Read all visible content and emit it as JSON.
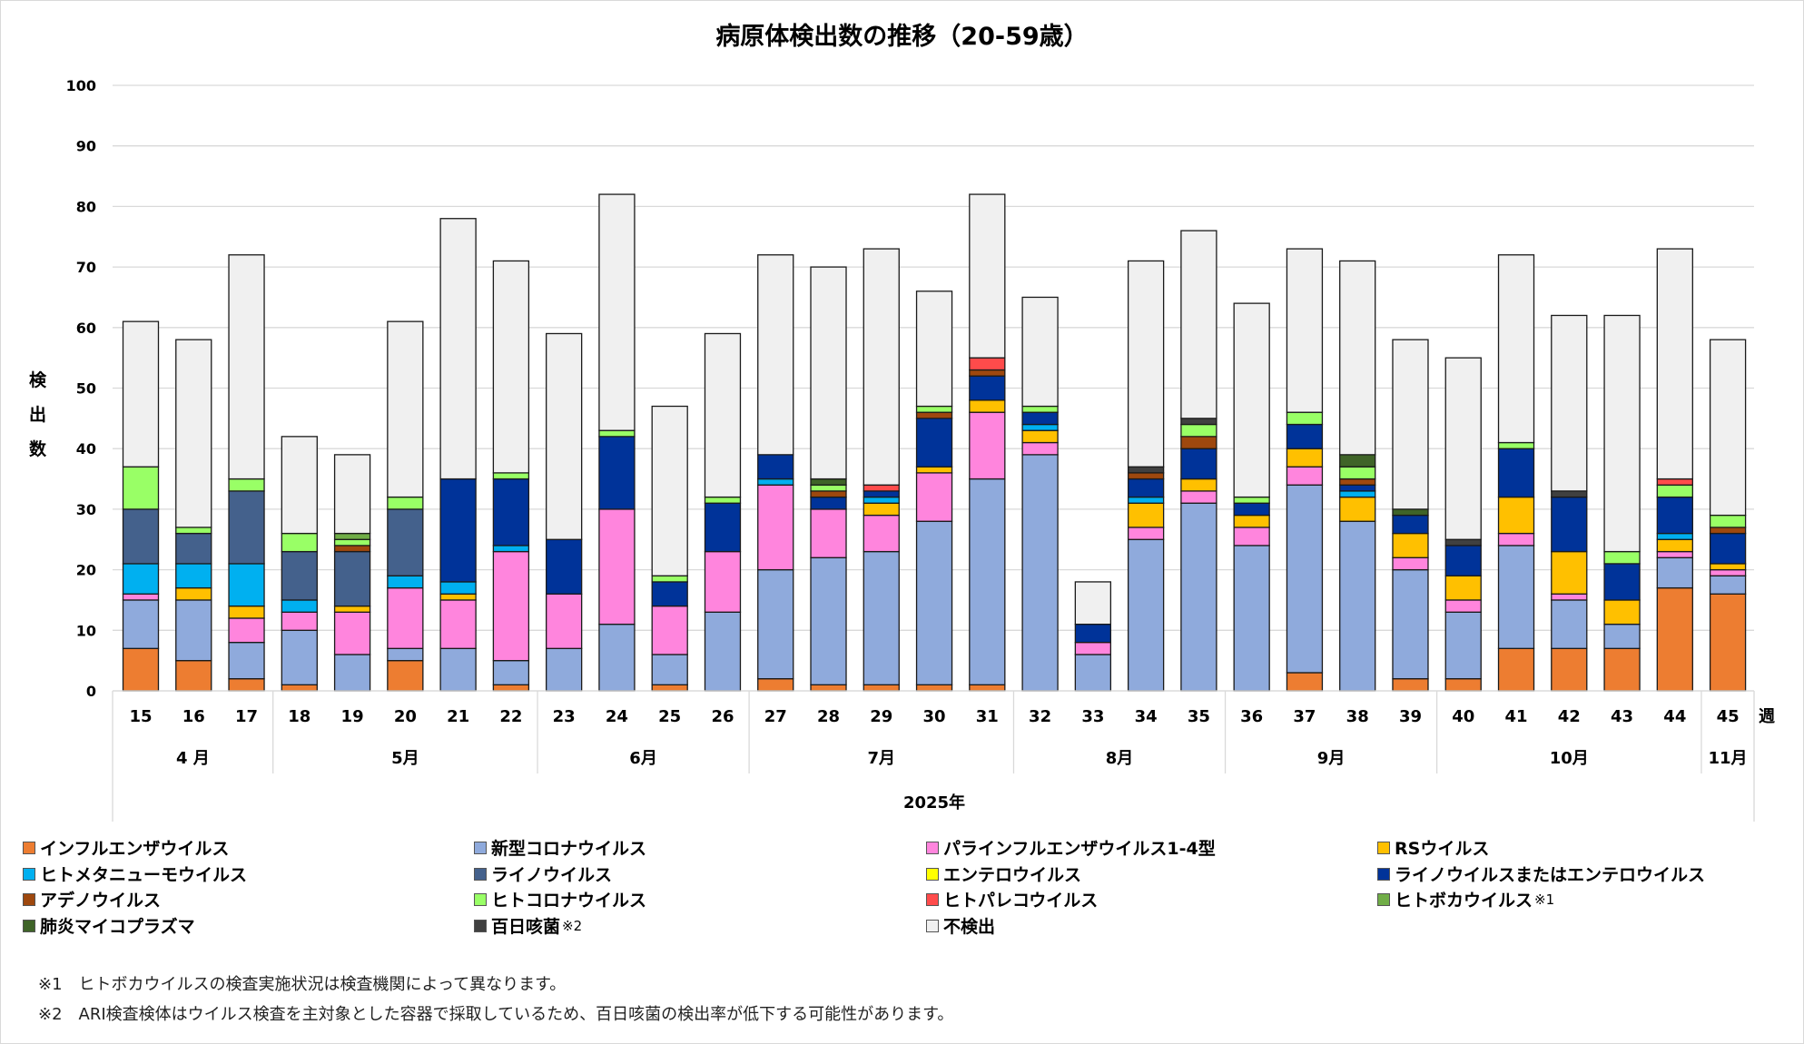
{
  "chart_data": {
    "type": "bar",
    "stacked": true,
    "title": "病原体検出数の推移（20-59歳）",
    "ylabel": "検出数",
    "xlabel": "2025年",
    "x_unit_label": "週",
    "ylim": [
      0,
      100
    ],
    "yticks": [
      0,
      10,
      20,
      30,
      40,
      50,
      60,
      70,
      80,
      90,
      100
    ],
    "grid": true,
    "legend_position": "bottom",
    "categories": [
      "15",
      "16",
      "17",
      "18",
      "19",
      "20",
      "21",
      "22",
      "23",
      "24",
      "25",
      "26",
      "27",
      "28",
      "29",
      "30",
      "31",
      "32",
      "33",
      "34",
      "35",
      "36",
      "37",
      "38",
      "39",
      "40",
      "41",
      "42",
      "43",
      "44",
      "45"
    ],
    "month_groups": [
      {
        "label": "4 月",
        "start": 0,
        "end": 2
      },
      {
        "label": "5月",
        "start": 3,
        "end": 7
      },
      {
        "label": "6月",
        "start": 8,
        "end": 11
      },
      {
        "label": "7月",
        "start": 12,
        "end": 16
      },
      {
        "label": "8月",
        "start": 17,
        "end": 20
      },
      {
        "label": "9月",
        "start": 21,
        "end": 24
      },
      {
        "label": "10月",
        "start": 25,
        "end": 29
      },
      {
        "label": "11月",
        "start": 30,
        "end": 30
      }
    ],
    "series": [
      {
        "name": "インフルエンザウイルス",
        "color": "#ED7D31",
        "values": [
          7,
          5,
          2,
          1,
          0,
          5,
          0,
          1,
          0,
          0,
          1,
          0,
          2,
          1,
          1,
          1,
          1,
          0,
          0,
          0,
          0,
          0,
          3,
          0,
          2,
          2,
          7,
          7,
          7,
          17,
          16
        ]
      },
      {
        "name": "新型コロナウイルス",
        "color": "#8FAADC",
        "values": [
          8,
          10,
          6,
          9,
          6,
          2,
          7,
          4,
          7,
          11,
          5,
          13,
          18,
          21,
          22,
          27,
          34,
          39,
          6,
          25,
          31,
          24,
          31,
          28,
          18,
          11,
          17,
          8,
          4,
          5,
          3
        ]
      },
      {
        "name": "パラインフルエンザウイルス1-4型",
        "color": "#FF85DD",
        "values": [
          1,
          0,
          4,
          3,
          7,
          10,
          8,
          18,
          9,
          19,
          8,
          10,
          14,
          8,
          6,
          8,
          11,
          2,
          2,
          2,
          2,
          3,
          3,
          0,
          2,
          2,
          2,
          1,
          0,
          1,
          1
        ]
      },
      {
        "name": "RSウイルス",
        "color": "#FFC000",
        "values": [
          0,
          2,
          2,
          0,
          1,
          0,
          1,
          0,
          0,
          0,
          0,
          0,
          0,
          0,
          2,
          1,
          2,
          2,
          0,
          4,
          2,
          2,
          3,
          4,
          4,
          4,
          6,
          7,
          4,
          2,
          1
        ]
      },
      {
        "name": "ヒトメタニューモウイルス",
        "color": "#00B0F0",
        "values": [
          5,
          4,
          7,
          2,
          0,
          2,
          2,
          1,
          0,
          0,
          0,
          0,
          1,
          0,
          1,
          0,
          0,
          1,
          0,
          1,
          0,
          0,
          0,
          1,
          0,
          0,
          0,
          0,
          0,
          1,
          0
        ]
      },
      {
        "name": "エンテロウイルス",
        "color": "#FFFF00",
        "values": [
          0,
          0,
          0,
          0,
          0,
          0,
          0,
          0,
          0,
          0,
          0,
          0,
          0,
          0,
          0,
          0,
          0,
          0,
          0,
          0,
          0,
          0,
          0,
          0,
          0,
          0,
          0,
          0,
          0,
          0,
          0
        ]
      },
      {
        "name": "ライノウイルス",
        "color": "#44618C",
        "values": [
          9,
          5,
          12,
          8,
          9,
          11,
          0,
          0,
          0,
          0,
          0,
          0,
          0,
          0,
          0,
          0,
          0,
          0,
          0,
          0,
          0,
          0,
          0,
          0,
          0,
          0,
          0,
          0,
          0,
          0,
          0
        ]
      },
      {
        "name": "ライノウイルスまたはエンテロウイルス",
        "color": "#003399",
        "values": [
          0,
          0,
          0,
          0,
          0,
          0,
          17,
          11,
          9,
          12,
          4,
          8,
          4,
          2,
          1,
          8,
          4,
          2,
          3,
          3,
          5,
          2,
          4,
          1,
          3,
          5,
          8,
          9,
          6,
          6,
          5
        ]
      },
      {
        "name": "アデノウイルス",
        "color": "#9E480E",
        "values": [
          0,
          0,
          0,
          0,
          1,
          0,
          0,
          0,
          0,
          0,
          0,
          0,
          0,
          1,
          0,
          1,
          1,
          0,
          0,
          1,
          2,
          0,
          0,
          1,
          0,
          0,
          0,
          0,
          0,
          0,
          1
        ]
      },
      {
        "name": "ヒトコロナウイルス",
        "color": "#99FF66",
        "values": [
          7,
          1,
          2,
          3,
          1,
          2,
          0,
          1,
          0,
          1,
          1,
          1,
          0,
          1,
          0,
          1,
          0,
          1,
          0,
          0,
          2,
          1,
          2,
          2,
          0,
          0,
          1,
          0,
          2,
          2,
          2
        ]
      },
      {
        "name": "ヒトパレコウイルス",
        "color": "#FF4B4B",
        "values": [
          0,
          0,
          0,
          0,
          0,
          0,
          0,
          0,
          0,
          0,
          0,
          0,
          0,
          0,
          1,
          0,
          2,
          0,
          0,
          0,
          0,
          0,
          0,
          0,
          0,
          0,
          0,
          0,
          0,
          1,
          0
        ]
      },
      {
        "name": "ヒトボカウイルス",
        "color": "#70AD47",
        "values": [
          0,
          0,
          0,
          0,
          1,
          0,
          0,
          0,
          0,
          0,
          0,
          0,
          0,
          0,
          0,
          0,
          0,
          0,
          0,
          0,
          0,
          0,
          0,
          0,
          0,
          0,
          0,
          0,
          0,
          0,
          0
        ]
      },
      {
        "name": "肺炎マイコプラズマ",
        "color": "#3F6428",
        "values": [
          0,
          0,
          0,
          0,
          0,
          0,
          0,
          0,
          0,
          0,
          0,
          0,
          0,
          1,
          0,
          0,
          0,
          0,
          0,
          0,
          0,
          0,
          0,
          2,
          1,
          0,
          0,
          0,
          0,
          0,
          0
        ]
      },
      {
        "name": "百日咳菌",
        "color": "#404040",
        "values": [
          0,
          0,
          0,
          0,
          0,
          0,
          0,
          0,
          0,
          0,
          0,
          0,
          0,
          0,
          0,
          0,
          0,
          0,
          0,
          1,
          1,
          0,
          0,
          0,
          0,
          1,
          0,
          1,
          0,
          0,
          0
        ]
      },
      {
        "name": "不検出",
        "color": "#F0F0F0",
        "values": [
          24,
          31,
          37,
          16,
          13,
          29,
          43,
          35,
          34,
          39,
          28,
          27,
          33,
          35,
          39,
          19,
          27,
          18,
          7,
          34,
          31,
          32,
          27,
          32,
          28,
          30,
          31,
          29,
          39,
          38,
          29
        ]
      }
    ],
    "totals": [
      61,
      58,
      72,
      42,
      39,
      61,
      78,
      71,
      59,
      82,
      47,
      59,
      72,
      70,
      73,
      66,
      82,
      65,
      18,
      71,
      76,
      64,
      73,
      71,
      58,
      55,
      72,
      62,
      62,
      73,
      58
    ]
  },
  "legend": [
    {
      "label": "インフルエンザウイルス",
      "color": "#ED7D31",
      "note": ""
    },
    {
      "label": "新型コロナウイルス",
      "color": "#8FAADC",
      "note": ""
    },
    {
      "label": "パラインフルエンザウイルス1-4型",
      "color": "#FF85DD",
      "note": ""
    },
    {
      "label": "RSウイルス",
      "color": "#FFC000",
      "note": ""
    },
    {
      "label": "ヒトメタニューモウイルス",
      "color": "#00B0F0",
      "note": ""
    },
    {
      "label": "ライノウイルス",
      "color": "#44618C",
      "note": ""
    },
    {
      "label": "エンテロウイルス",
      "color": "#FFFF00",
      "note": ""
    },
    {
      "label": "ライノウイルスまたはエンテロウイルス",
      "color": "#003399",
      "note": ""
    },
    {
      "label": "アデノウイルス",
      "color": "#9E480E",
      "note": ""
    },
    {
      "label": "ヒトコロナウイルス",
      "color": "#99FF66",
      "note": ""
    },
    {
      "label": "ヒトパレコウイルス",
      "color": "#FF4B4B",
      "note": ""
    },
    {
      "label": "ヒトボカウイルス",
      "color": "#70AD47",
      "note": "※1"
    },
    {
      "label": "肺炎マイコプラズマ",
      "color": "#3F6428",
      "note": ""
    },
    {
      "label": "百日咳菌",
      "color": "#404040",
      "note": "※2"
    },
    {
      "label": "不検出",
      "color": "#F0F0F0",
      "note": ""
    }
  ],
  "footnotes": [
    "※1　ヒトボカウイルスの検査実施状況は検査機関によって異なります。",
    "※2　ARI検査検体はウイルス検査を主対象とした容器で採取しているため、百日咳菌の検出率が低下する可能性があります。"
  ]
}
